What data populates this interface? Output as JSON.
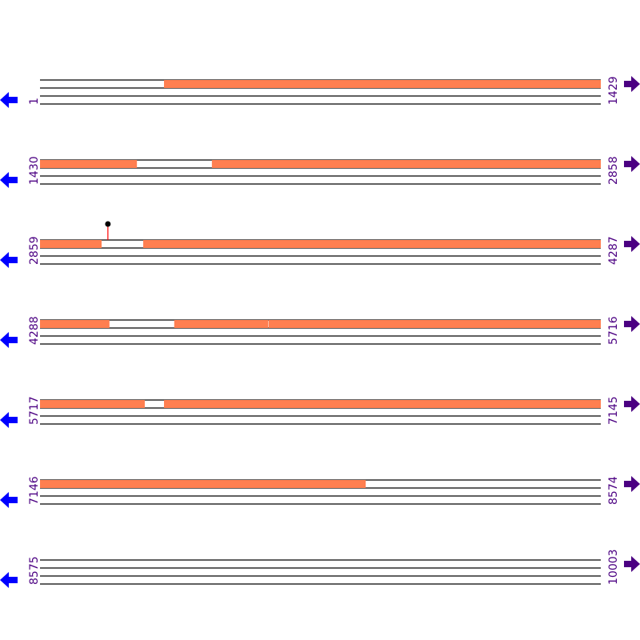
{
  "colors": {
    "feature": "#ff7f50",
    "track_line": "#000000",
    "label": "#4b0082",
    "reverse_arrow": "#0000ff",
    "forward_arrow": "#4b0082",
    "marker_stem": "#ff0000",
    "marker_head": "#000000"
  },
  "icons": {
    "left": "arrow-left-icon",
    "right": "arrow-right-icon"
  },
  "bases_per_row": 1429,
  "rows": [
    {
      "start": "1",
      "end": "1429"
    },
    {
      "start": "1430",
      "end": "2858"
    },
    {
      "start": "2859",
      "end": "4287"
    },
    {
      "start": "4288",
      "end": "5716"
    },
    {
      "start": "5717",
      "end": "7145"
    },
    {
      "start": "7146",
      "end": "8574"
    },
    {
      "start": "8575",
      "end": "10003"
    }
  ],
  "features": [
    {
      "start": 317,
      "end": 1677
    },
    {
      "start": 1868,
      "end": 3016
    },
    {
      "start": 3122,
      "end": 4465
    },
    {
      "start": 4630,
      "end": 4869
    },
    {
      "start": 4870,
      "end": 5984
    },
    {
      "start": 6033,
      "end": 7976
    }
  ],
  "markers": [
    {
      "position": 3032
    }
  ]
}
